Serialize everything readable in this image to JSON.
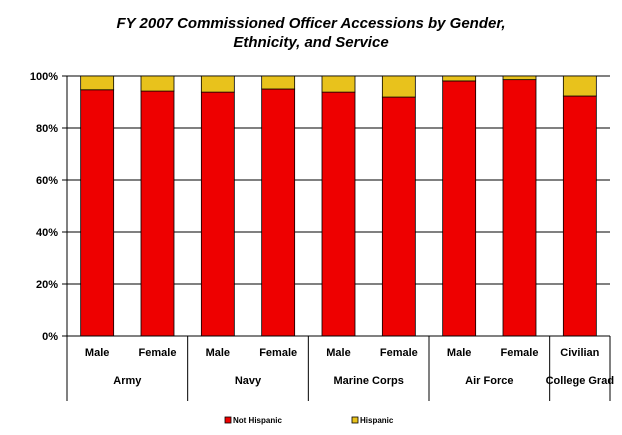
{
  "chart_data": {
    "type": "bar",
    "stacked": true,
    "title_lines": [
      "FY 2007 Commissioned Officer Accessions by Gender,",
      "Ethnicity, and Service"
    ],
    "categories": [
      "Male",
      "Female",
      "Male",
      "Female",
      "Male",
      "Female",
      "Male",
      "Female",
      "Civilian"
    ],
    "groups": [
      {
        "name": "Army",
        "count": 2
      },
      {
        "name": "Navy",
        "count": 2
      },
      {
        "name": "Marine Corps",
        "count": 2
      },
      {
        "name": "Air Force",
        "count": 2
      },
      {
        "name": "College Grad",
        "count": 1
      }
    ],
    "series": [
      {
        "name": "Not Hispanic",
        "color": "#ee0000",
        "values": [
          94.7,
          94.2,
          93.8,
          95.0,
          93.8,
          91.9,
          98.1,
          98.6,
          92.3
        ]
      },
      {
        "name": "Hispanic",
        "color": "#e8c21c",
        "values": [
          5.3,
          5.8,
          6.2,
          5.0,
          6.2,
          8.1,
          1.9,
          1.4,
          7.7
        ]
      }
    ],
    "ylim": [
      0,
      100
    ],
    "yticks": [
      "0%",
      "20%",
      "40%",
      "60%",
      "80%",
      "100%"
    ],
    "grid": true,
    "legend_position": "bottom"
  }
}
